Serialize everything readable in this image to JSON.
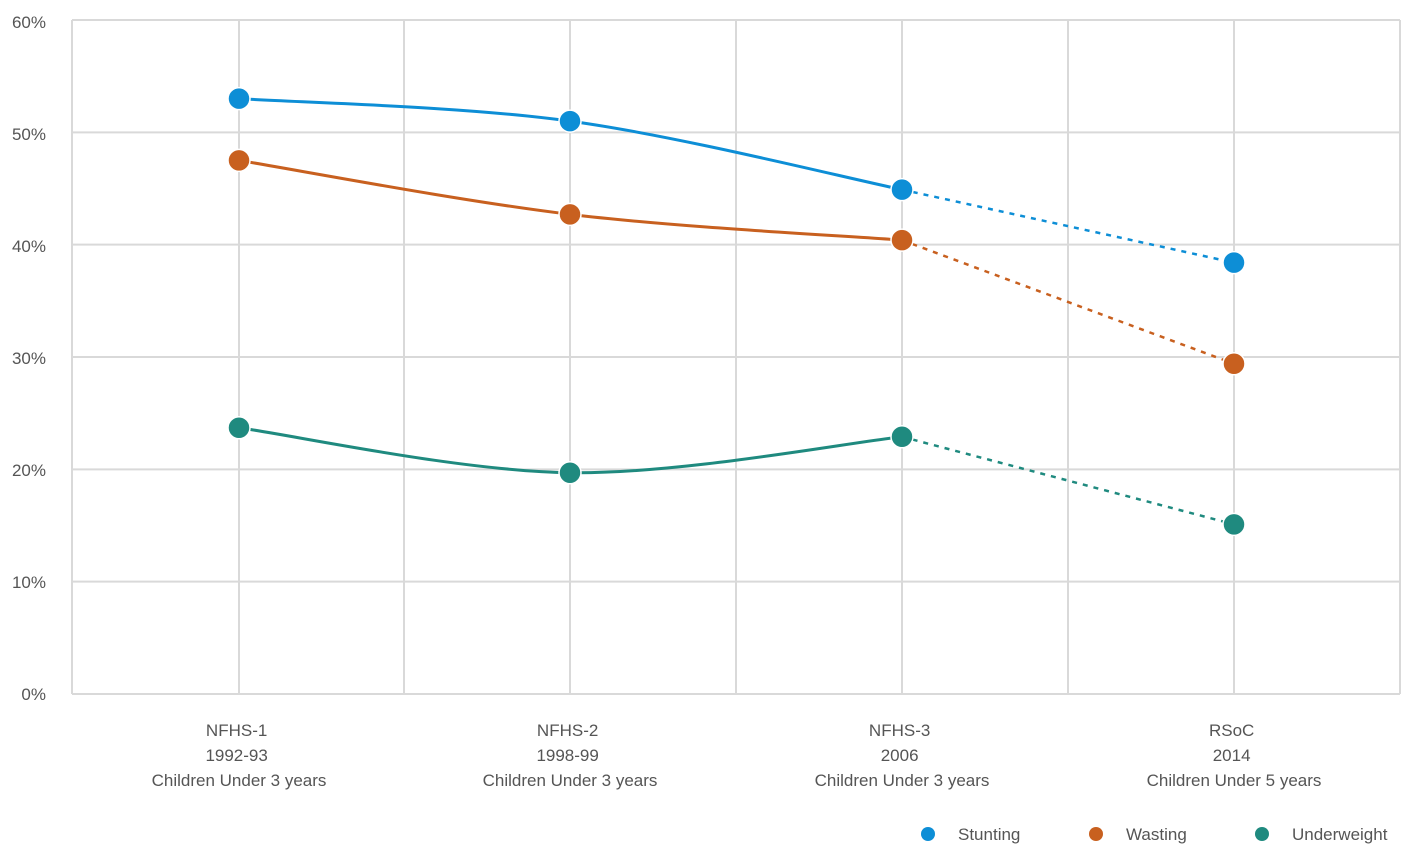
{
  "chart_data": {
    "type": "line",
    "categories": [
      [
        "NFHS-1",
        "1992-93",
        "Children Under 3 years"
      ],
      [
        "NFHS-2",
        "1998-99",
        "Children Under 3 years"
      ],
      [
        "NFHS-3",
        "2006",
        "Children Under 3 years"
      ],
      [
        "RSoC",
        "2014",
        "Children Under 5 years"
      ]
    ],
    "y_ticks": [
      "0%",
      "10%",
      "20%",
      "30%",
      "40%",
      "50%",
      "60%"
    ],
    "ylim": [
      0,
      60
    ],
    "grid": true,
    "legend_position": "bottom-right",
    "series": [
      {
        "name": "Stunting",
        "values": [
          53.0,
          51.0,
          44.9,
          38.4
        ],
        "color": "#0D8ED6"
      },
      {
        "name": "Wasting",
        "values": [
          47.5,
          42.7,
          40.4,
          29.4
        ],
        "color": "#C8601F"
      },
      {
        "name": "Underweight",
        "values": [
          23.7,
          19.7,
          22.9,
          15.1
        ],
        "color": "#1F8A7F"
      }
    ],
    "dashed_segment": "last",
    "title": "",
    "xlabel": "",
    "ylabel": ""
  }
}
